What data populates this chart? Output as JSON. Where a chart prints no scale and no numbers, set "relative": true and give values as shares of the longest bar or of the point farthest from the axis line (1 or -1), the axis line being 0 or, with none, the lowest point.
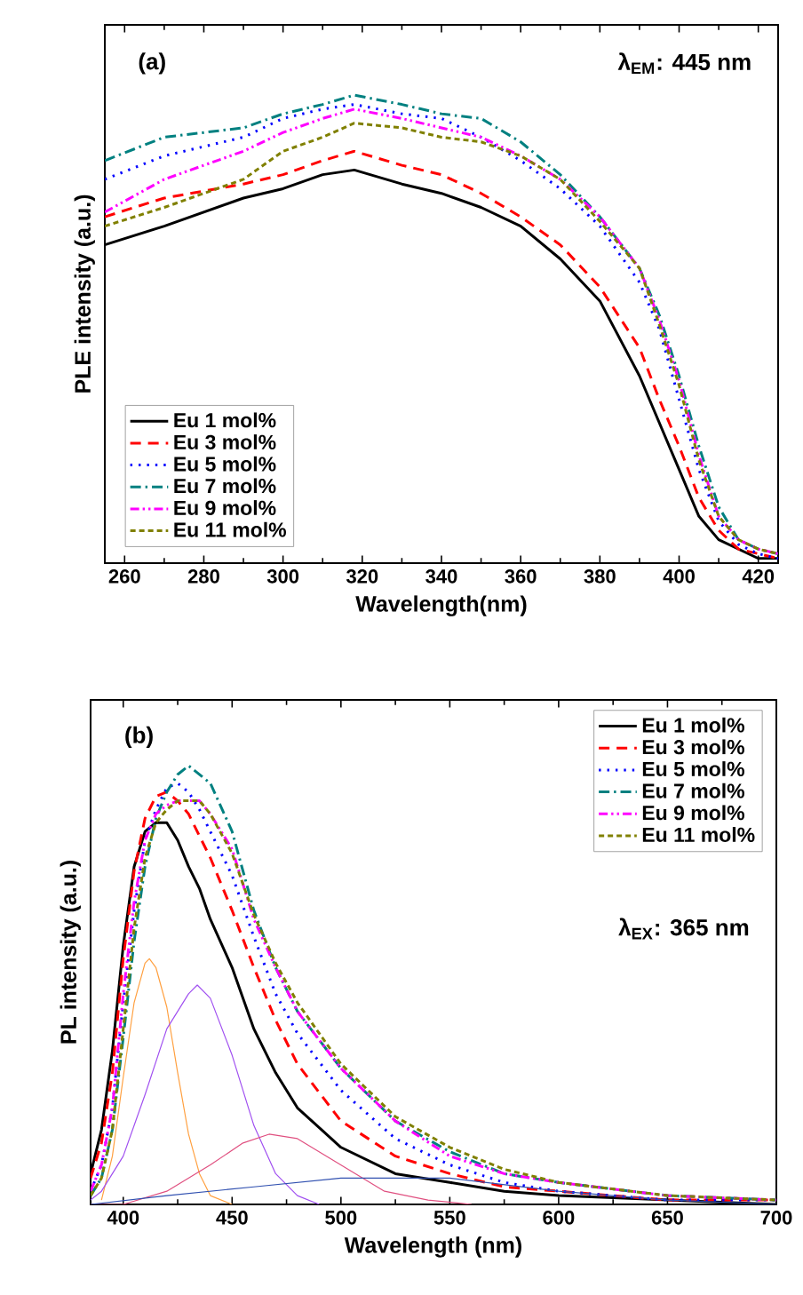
{
  "chart_data": [
    {
      "type": "line",
      "relative": true,
      "xlabel": "Wavelength(nm)",
      "ylabel": "PLE intensity (a.u.)",
      "annotations": [
        "(a)",
        "λ$_{EM}$: 445 nm"
      ],
      "xlim": [
        255,
        425
      ],
      "xticks": [
        260,
        280,
        300,
        320,
        340,
        360,
        380,
        400,
        420
      ],
      "tick_labels": "x",
      "legend": "bottom left",
      "x": [
        255,
        270,
        290,
        300,
        310,
        318,
        330,
        340,
        350,
        360,
        370,
        380,
        390,
        395,
        400,
        405,
        410,
        415,
        420,
        425
      ],
      "series": [
        {
          "name": "Eu   1 mol%",
          "color": "#000000",
          "line_style": "solid",
          "values": [
            0.68,
            0.72,
            0.78,
            0.8,
            0.83,
            0.84,
            0.81,
            0.79,
            0.76,
            0.72,
            0.65,
            0.56,
            0.4,
            0.3,
            0.2,
            0.1,
            0.05,
            0.03,
            0.01,
            0.01
          ]
        },
        {
          "name": "Eu   3 mol%",
          "color": "#ff0000",
          "line_style": "dashed",
          "values": [
            0.74,
            0.78,
            0.81,
            0.83,
            0.86,
            0.88,
            0.85,
            0.83,
            0.79,
            0.74,
            0.68,
            0.59,
            0.46,
            0.35,
            0.25,
            0.14,
            0.07,
            0.03,
            0.02,
            0.01
          ]
        },
        {
          "name": "Eu   5 mol%",
          "color": "#0000ff",
          "line_style": "dotted",
          "values": [
            0.82,
            0.87,
            0.91,
            0.95,
            0.97,
            0.98,
            0.96,
            0.95,
            0.91,
            0.86,
            0.8,
            0.72,
            0.6,
            0.5,
            0.35,
            0.2,
            0.09,
            0.04,
            0.02,
            0.01
          ]
        },
        {
          "name": "Eu   7 mol%",
          "color": "#008080",
          "line_style": "dashdot",
          "values": [
            0.86,
            0.91,
            0.93,
            0.96,
            0.98,
            1.0,
            0.98,
            0.96,
            0.95,
            0.9,
            0.83,
            0.74,
            0.63,
            0.53,
            0.4,
            0.25,
            0.12,
            0.05,
            0.03,
            0.02
          ]
        },
        {
          "name": "Eu   9 mol%",
          "color": "#ff00ff",
          "line_style": "dashdotdot",
          "values": [
            0.75,
            0.82,
            0.88,
            0.92,
            0.95,
            0.97,
            0.95,
            0.93,
            0.91,
            0.87,
            0.82,
            0.74,
            0.63,
            0.52,
            0.39,
            0.23,
            0.1,
            0.05,
            0.03,
            0.02
          ]
        },
        {
          "name": "Eu 11 mol%",
          "color": "#808000",
          "line_style": "shortdash",
          "values": [
            0.72,
            0.76,
            0.82,
            0.88,
            0.91,
            0.94,
            0.93,
            0.91,
            0.9,
            0.87,
            0.82,
            0.73,
            0.63,
            0.51,
            0.38,
            0.22,
            0.1,
            0.05,
            0.03,
            0.02
          ]
        }
      ]
    },
    {
      "type": "line",
      "relative": true,
      "xlabel": "Wavelength (nm)",
      "ylabel": "PL intensity (a.u.)",
      "annotations": [
        "(b)",
        "λ$_{EX}$: 365 nm"
      ],
      "xlim": [
        385,
        700
      ],
      "xticks": [
        400,
        450,
        500,
        550,
        600,
        650,
        700
      ],
      "tick_labels": "x",
      "legend": "top right",
      "x": [
        385,
        390,
        395,
        400,
        405,
        410,
        415,
        420,
        425,
        430,
        435,
        440,
        450,
        460,
        470,
        480,
        500,
        525,
        550,
        575,
        600,
        650,
        700
      ],
      "series": [
        {
          "name": "Eu   1 mol%",
          "color": "#000000",
          "line_style": "solid",
          "values": [
            0.07,
            0.17,
            0.35,
            0.59,
            0.77,
            0.85,
            0.87,
            0.87,
            0.83,
            0.77,
            0.72,
            0.65,
            0.54,
            0.4,
            0.3,
            0.22,
            0.13,
            0.07,
            0.05,
            0.03,
            0.02,
            0.01,
            0.0
          ]
        },
        {
          "name": "Eu   3 mol%",
          "color": "#ff0000",
          "line_style": "dashed",
          "values": [
            0.06,
            0.14,
            0.3,
            0.56,
            0.76,
            0.88,
            0.93,
            0.94,
            0.92,
            0.89,
            0.84,
            0.79,
            0.67,
            0.54,
            0.42,
            0.32,
            0.19,
            0.11,
            0.07,
            0.04,
            0.03,
            0.01,
            0.01
          ]
        },
        {
          "name": "Eu   5 mol%",
          "color": "#0000ff",
          "line_style": "dotted",
          "values": [
            0.03,
            0.09,
            0.22,
            0.46,
            0.67,
            0.83,
            0.9,
            0.95,
            0.96,
            0.94,
            0.9,
            0.85,
            0.75,
            0.61,
            0.48,
            0.39,
            0.26,
            0.15,
            0.09,
            0.05,
            0.03,
            0.01,
            0.01
          ]
        },
        {
          "name": "Eu   7 mol%",
          "color": "#008080",
          "line_style": "dashdot",
          "values": [
            0.02,
            0.06,
            0.17,
            0.38,
            0.6,
            0.77,
            0.88,
            0.94,
            0.98,
            1.0,
            0.98,
            0.96,
            0.85,
            0.67,
            0.54,
            0.44,
            0.31,
            0.19,
            0.12,
            0.07,
            0.05,
            0.02,
            0.01
          ]
        },
        {
          "name": "Eu   9 mol%",
          "color": "#ff00ff",
          "line_style": "dashdotdot",
          "values": [
            0.03,
            0.09,
            0.22,
            0.48,
            0.69,
            0.83,
            0.89,
            0.91,
            0.92,
            0.92,
            0.92,
            0.89,
            0.81,
            0.65,
            0.54,
            0.44,
            0.31,
            0.19,
            0.11,
            0.07,
            0.05,
            0.02,
            0.01
          ]
        },
        {
          "name": "Eu 11 mol%",
          "color": "#808000",
          "line_style": "shortdash",
          "values": [
            0.02,
            0.06,
            0.17,
            0.4,
            0.63,
            0.79,
            0.87,
            0.9,
            0.92,
            0.92,
            0.92,
            0.89,
            0.8,
            0.66,
            0.55,
            0.46,
            0.32,
            0.2,
            0.13,
            0.08,
            0.05,
            0.02,
            0.01
          ]
        },
        {
          "color": "#ffa040",
          "line_style": "solid",
          "x": [
            390,
            395,
            400,
            405,
            410,
            412,
            415,
            420,
            425,
            430,
            435,
            440,
            450
          ],
          "values": [
            0.01,
            0.11,
            0.29,
            0.46,
            0.55,
            0.56,
            0.54,
            0.45,
            0.3,
            0.16,
            0.07,
            0.02,
            0.0
          ]
        },
        {
          "color": "#a050f0",
          "line_style": "solid",
          "x": [
            385,
            390,
            400,
            410,
            420,
            430,
            434,
            440,
            450,
            460,
            470,
            480,
            490
          ],
          "values": [
            0.01,
            0.03,
            0.11,
            0.25,
            0.4,
            0.48,
            0.5,
            0.47,
            0.34,
            0.18,
            0.07,
            0.02,
            0.0
          ]
        },
        {
          "color": "#e05080",
          "line_style": "solid",
          "x": [
            385,
            400,
            420,
            440,
            455,
            467,
            480,
            500,
            520,
            540,
            560
          ],
          "values": [
            0.0,
            0.0,
            0.03,
            0.09,
            0.14,
            0.16,
            0.15,
            0.09,
            0.03,
            0.01,
            0.0
          ]
        },
        {
          "color": "#3050b0",
          "line_style": "solid",
          "x": [
            385,
            420,
            460,
            500,
            520,
            550,
            600,
            650,
            700
          ],
          "values": [
            0.0,
            0.02,
            0.04,
            0.06,
            0.06,
            0.06,
            0.03,
            0.01,
            0.0
          ]
        }
      ]
    }
  ]
}
